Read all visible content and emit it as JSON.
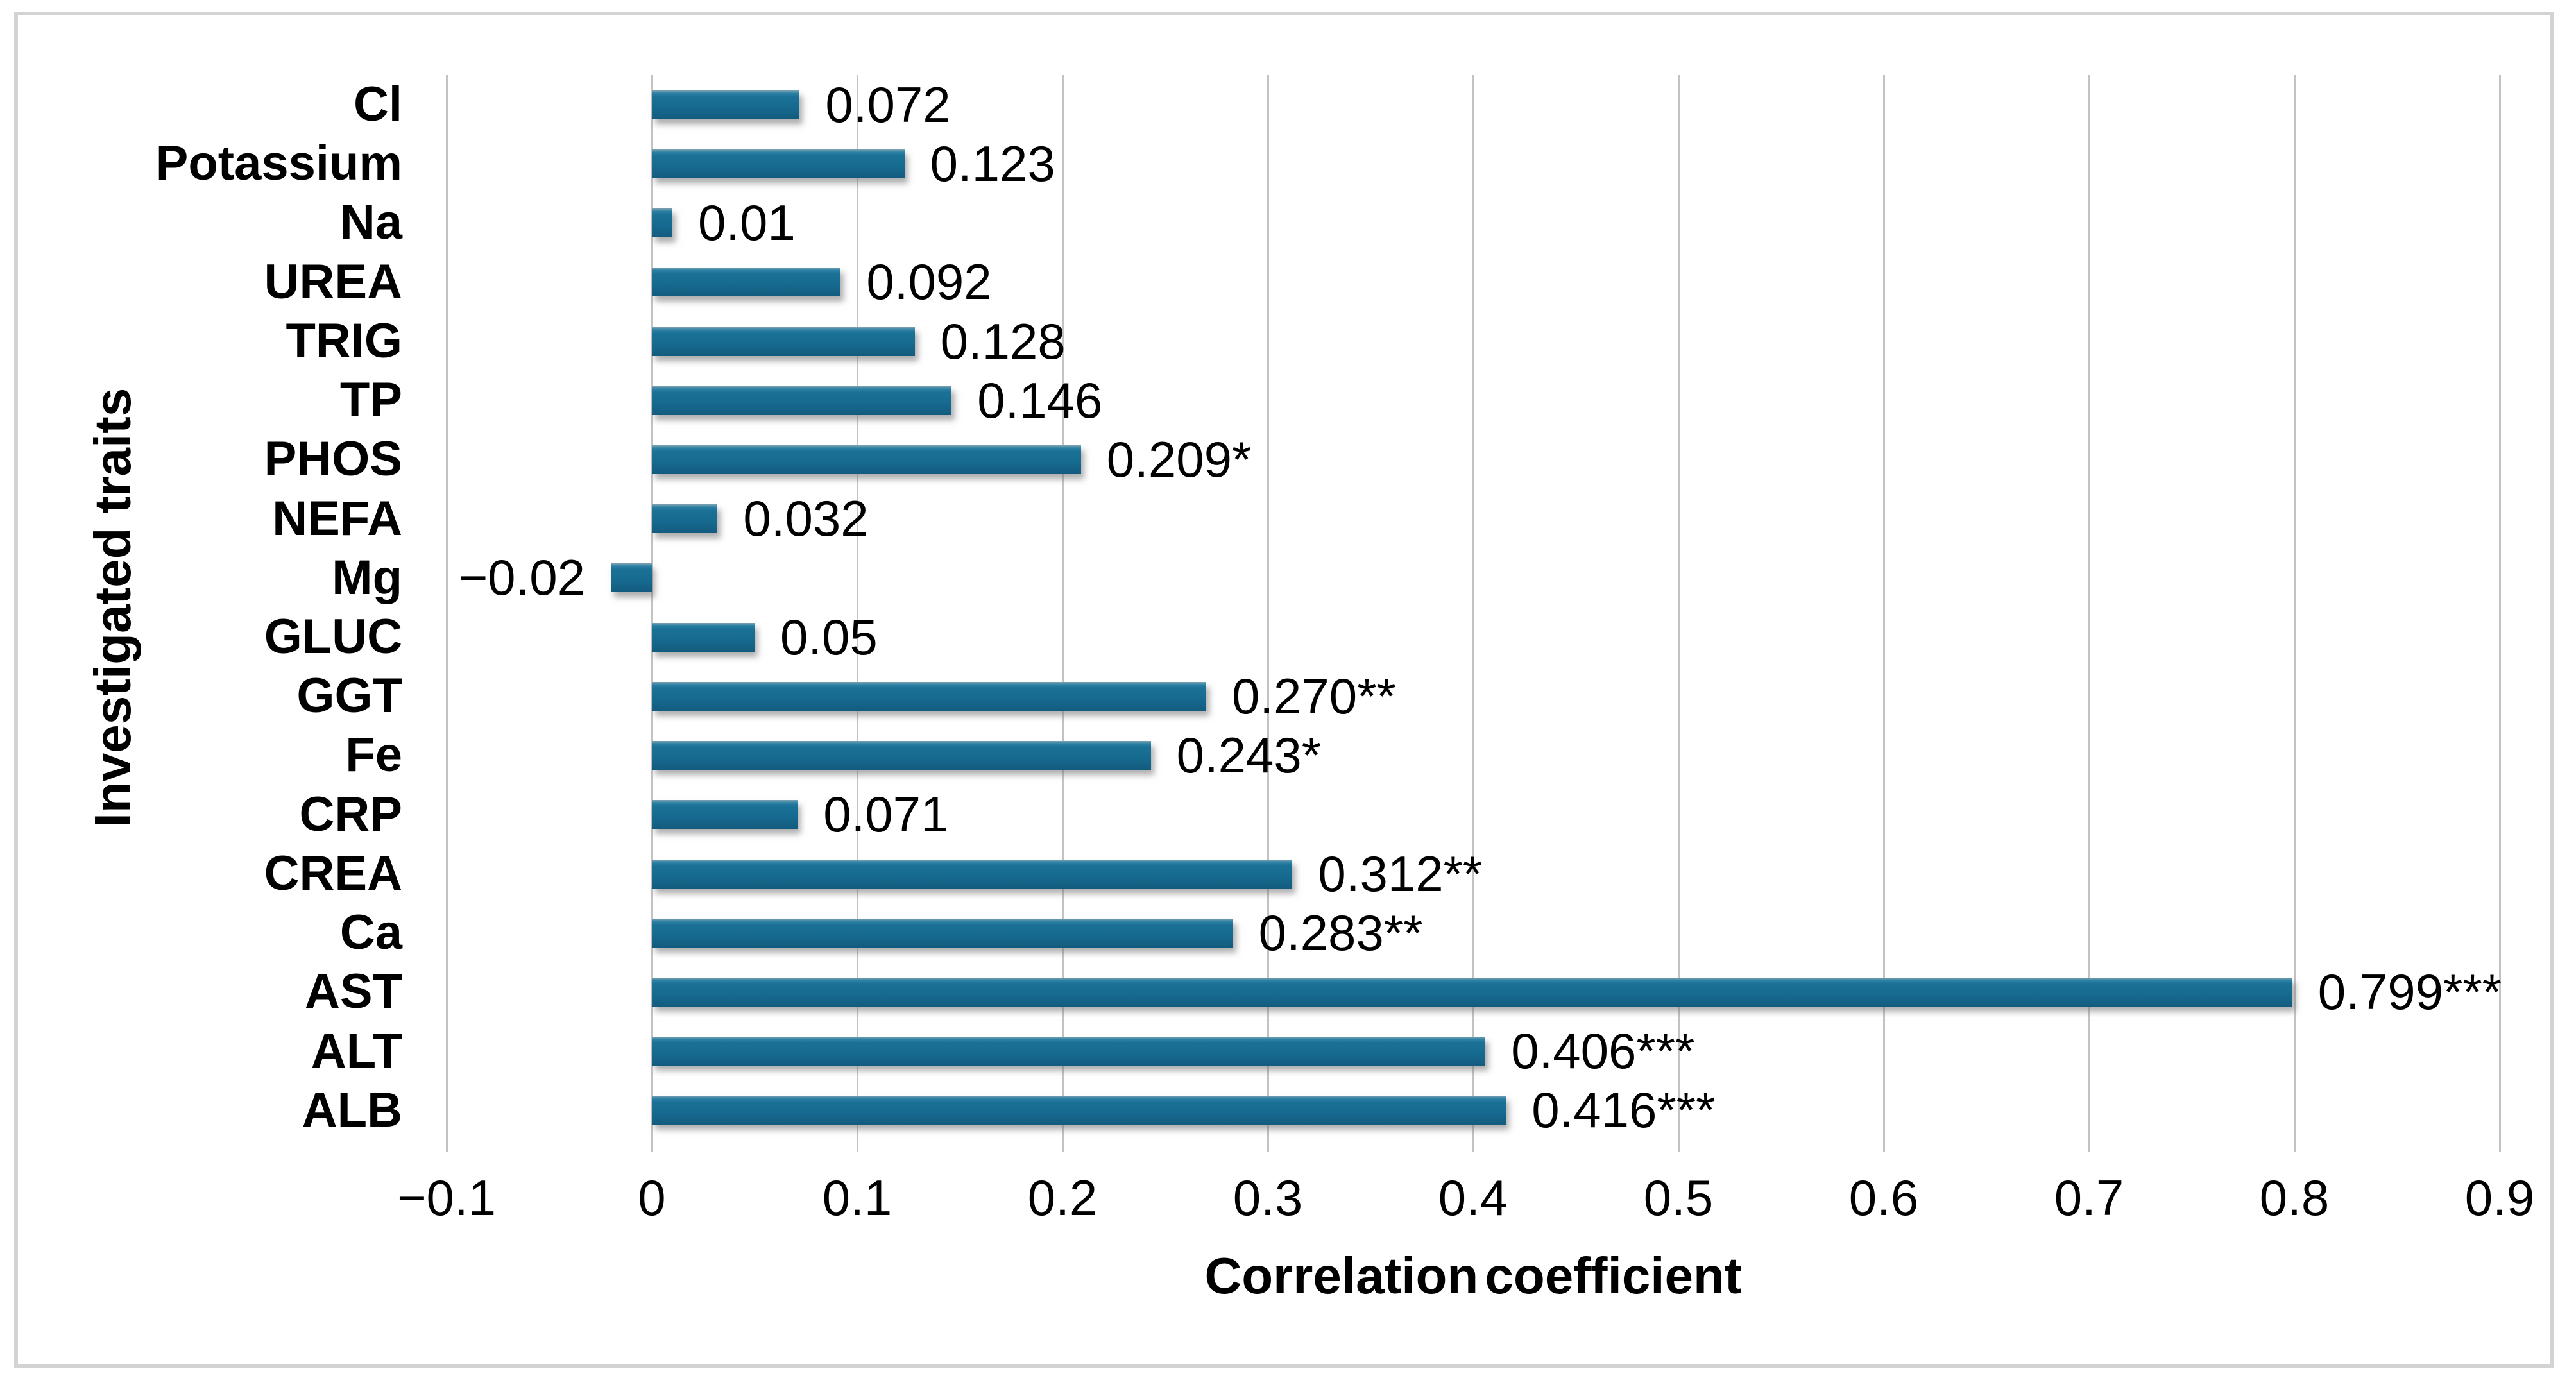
{
  "chart_data": {
    "type": "bar",
    "orientation": "horizontal",
    "title": "",
    "xlabel": "Correlation coefficient",
    "ylabel": "Investigated traits",
    "categories": [
      "Cl",
      "Potassium",
      "Na",
      "UREA",
      "TRIG",
      "TP",
      "PHOS",
      "NEFA",
      "Mg",
      "GLUC",
      "GGT",
      "Fe",
      "CRP",
      "CREA",
      "Ca",
      "AST",
      "ALT",
      "ALB"
    ],
    "values": [
      0.072,
      0.123,
      0.01,
      0.092,
      0.128,
      0.146,
      0.209,
      0.032,
      -0.02,
      0.05,
      0.27,
      0.243,
      0.071,
      0.312,
      0.283,
      0.799,
      0.406,
      0.416
    ],
    "data_labels": [
      "0.072",
      "0.123",
      "0.01",
      "0.092",
      "0.128",
      "0.146",
      "0.209*",
      "0.032",
      "−0.02",
      "0.05",
      "0.270**",
      "0.243*",
      "0.071",
      "0.312**",
      "0.283**",
      "0.799***",
      "0.406***",
      "0.416***"
    ],
    "x_ticks": [
      -0.1,
      0,
      0.1,
      0.2,
      0.3,
      0.4,
      0.5,
      0.6,
      0.7,
      0.8,
      0.9
    ],
    "x_tick_labels": [
      "−0.1",
      "0",
      "0.1",
      "0.2",
      "0.3",
      "0.4",
      "0.5",
      "0.6",
      "0.7",
      "0.8",
      "0.9"
    ],
    "xlim": [
      -0.1,
      0.9
    ],
    "grid": "vertical-gridlines",
    "legend": "none",
    "colors": {
      "bar": "#176B91",
      "grid": "#C3C3C3",
      "text": "#000000",
      "frame": "#D3D3D3",
      "background": "#FFFFFF"
    }
  }
}
